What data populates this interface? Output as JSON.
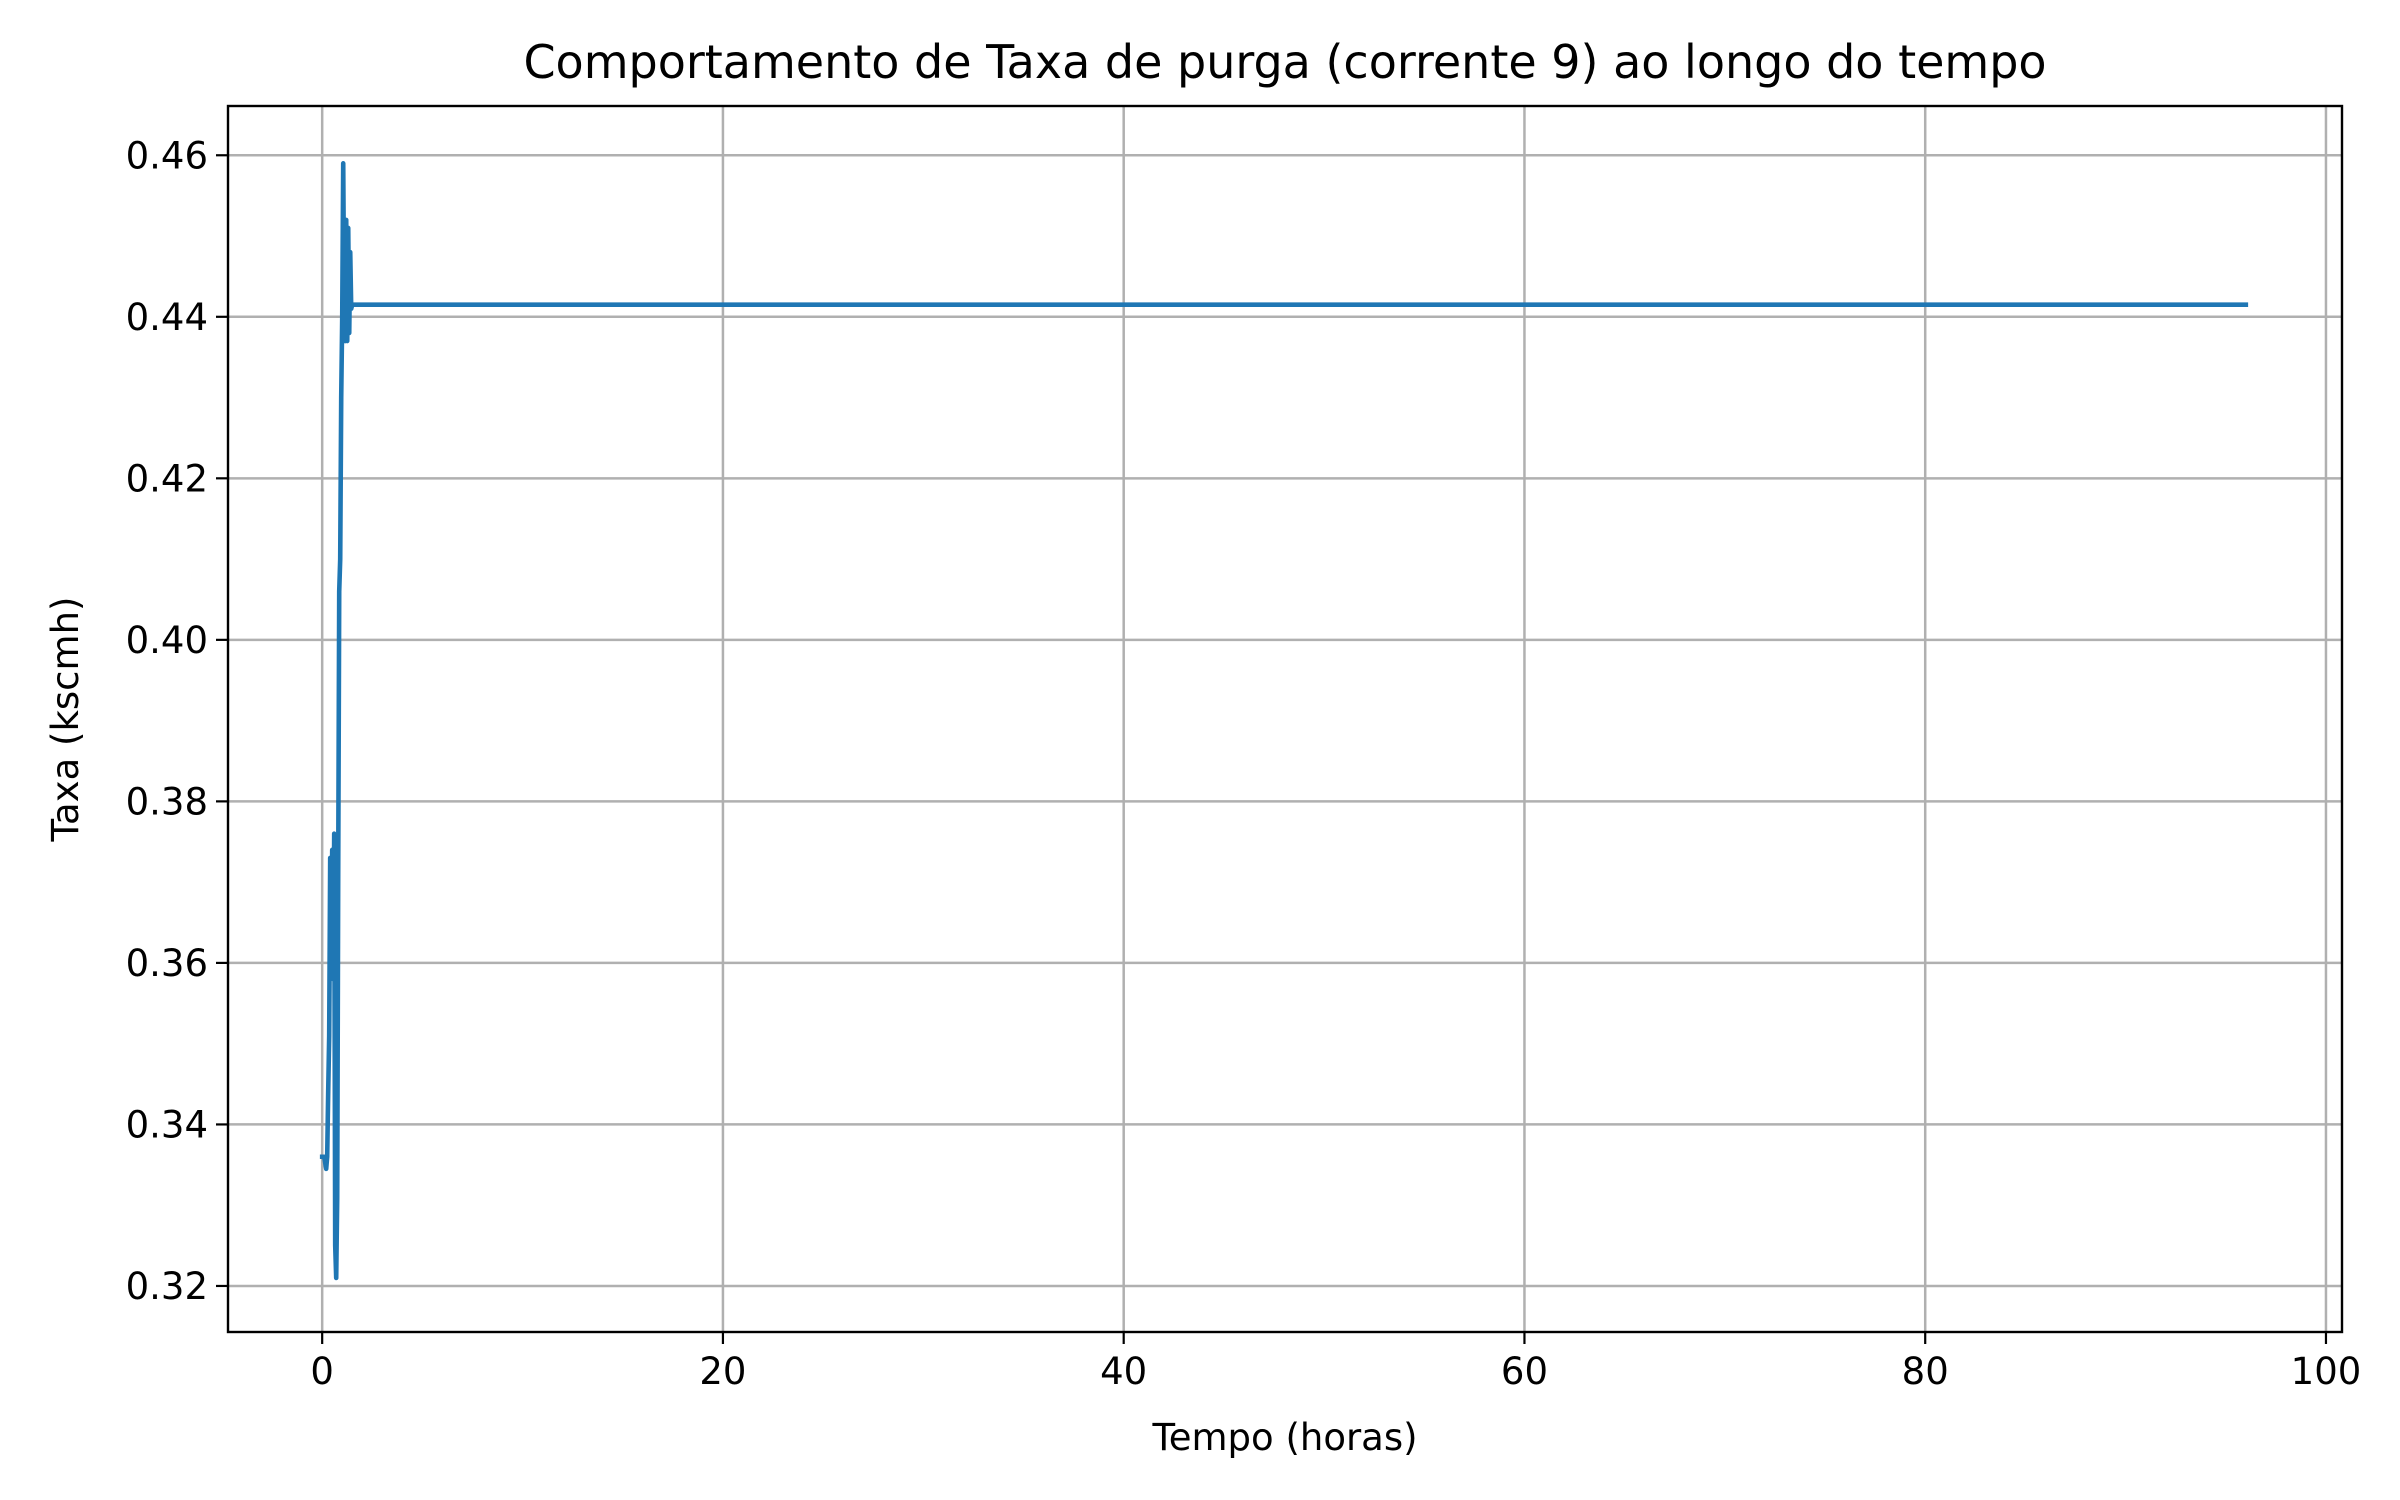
{
  "chart_data": {
    "type": "line",
    "title": "Comportamento de Taxa de purga (corrente 9) ao longo do tempo",
    "xlabel": "Tempo (horas)",
    "ylabel": "Taxa (kscmh)",
    "xlim": [
      -4.7,
      100.8
    ],
    "ylim": [
      0.3143,
      0.4661
    ],
    "grid": true,
    "xticks": [
      0,
      20,
      40,
      60,
      80,
      100
    ],
    "xtick_labels": [
      "0",
      "20",
      "40",
      "60",
      "80",
      "100"
    ],
    "yticks": [
      0.32,
      0.34,
      0.36,
      0.38,
      0.4,
      0.42,
      0.44,
      0.46
    ],
    "ytick_labels": [
      "0.32",
      "0.34",
      "0.36",
      "0.38",
      "0.40",
      "0.42",
      "0.44",
      "0.46"
    ],
    "series": [
      {
        "color": "#1f77b4",
        "x": [
          0.0,
          0.1,
          0.2,
          0.25,
          0.3,
          0.35,
          0.4,
          0.45,
          0.5,
          0.55,
          0.6,
          0.65,
          0.7,
          0.75,
          0.8,
          0.85,
          0.9,
          0.95,
          1.0,
          1.05,
          1.1,
          1.15,
          1.2,
          1.25,
          1.3,
          1.35,
          1.4,
          1.45,
          1.5,
          1.55,
          1.6,
          1.65,
          1.7,
          1.75,
          1.8,
          1.85,
          1.9,
          2.0,
          2.5,
          5,
          10,
          20,
          30,
          40,
          50,
          60,
          70,
          80,
          90,
          96
        ],
        "y": [
          0.336,
          0.336,
          0.3345,
          0.336,
          0.344,
          0.351,
          0.373,
          0.359,
          0.374,
          0.358,
          0.376,
          0.325,
          0.321,
          0.331,
          0.371,
          0.406,
          0.41,
          0.43,
          0.44,
          0.459,
          0.44,
          0.437,
          0.452,
          0.437,
          0.451,
          0.438,
          0.448,
          0.441,
          0.4415,
          0.4415,
          0.4415,
          0.4415,
          0.4415,
          0.4415,
          0.4415,
          0.4415,
          0.4415,
          0.4415,
          0.4415,
          0.4415,
          0.4415,
          0.4415,
          0.4415,
          0.4415,
          0.4415,
          0.4415,
          0.4415,
          0.4415,
          0.4415,
          0.4415
        ]
      }
    ]
  }
}
